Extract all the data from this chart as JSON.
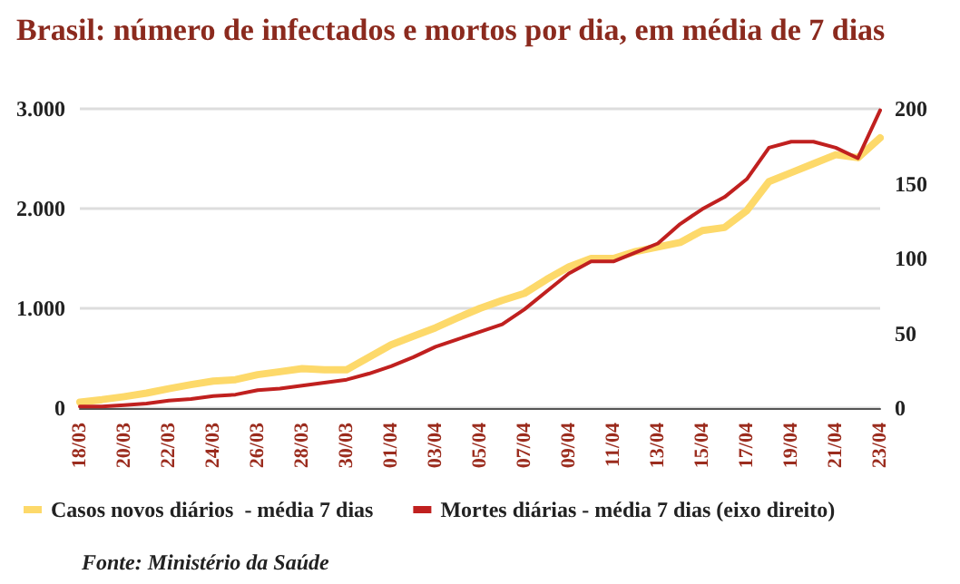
{
  "chart_data": {
    "type": "line",
    "title": "Brasil: número de infectados e mortos por dia, em média de 7 dias",
    "categories": [
      "18/03",
      null,
      "20/03",
      null,
      "22/03",
      null,
      "24/03",
      null,
      "26/03",
      null,
      "28/03",
      null,
      "30/03",
      null,
      "01/04",
      null,
      "03/04",
      null,
      "05/04",
      null,
      "07/04",
      null,
      "09/04",
      null,
      "11/04",
      null,
      "13/04",
      null,
      "15/04",
      null,
      "17/04",
      null,
      "19/04",
      null,
      "21/04",
      null,
      "23/04"
    ],
    "series": [
      {
        "name": "Casos novos diários  - média 7 dias",
        "color": "#fdd96a",
        "values": [
          60,
          85,
          115,
          150,
          195,
          235,
          270,
          285,
          335,
          365,
          395,
          385,
          385,
          510,
          635,
          720,
          805,
          905,
          1000,
          1080,
          1150,
          1290,
          1415,
          1500,
          1500,
          1570,
          1615,
          1660,
          1780,
          1810,
          1980,
          2270,
          2360,
          2450,
          2540,
          2510,
          2710
        ]
      },
      {
        "name": "Mortes diárias - média 7 dias (eixo direito)",
        "color": "#c0201f",
        "axis": "y2",
        "values": [
          1,
          1,
          2,
          3,
          5,
          6,
          8,
          9,
          12,
          13,
          15,
          17,
          19,
          23,
          28,
          34,
          41,
          46,
          51,
          56,
          66,
          78,
          90,
          98,
          98,
          104,
          110,
          123,
          133,
          141,
          153,
          174,
          178,
          178,
          174,
          167,
          199
        ]
      }
    ],
    "ylim": [
      0,
      3000
    ],
    "yticks": [
      {
        "value": 0,
        "label": "0"
      },
      {
        "value": 1000,
        "label": "1.000"
      },
      {
        "value": 2000,
        "label": "2.000"
      },
      {
        "value": 3000,
        "label": "3.000"
      }
    ],
    "y2lim": [
      0,
      200
    ],
    "y2ticks": [
      0,
      50,
      100,
      150,
      200
    ],
    "grid": "y",
    "legend": "bottom",
    "marker": "none",
    "line_style": "solid",
    "annotations": [
      "Fonte: Ministério da Saúde"
    ]
  }
}
